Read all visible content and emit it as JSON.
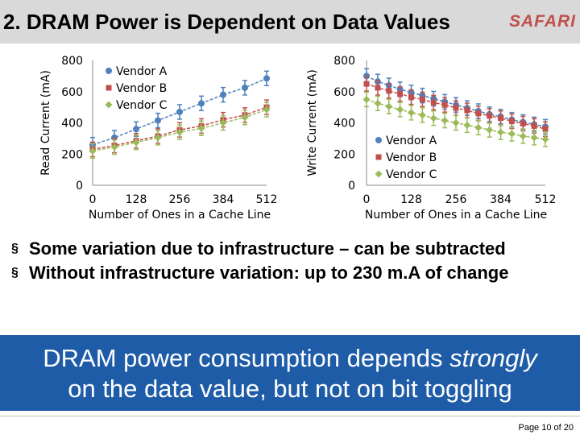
{
  "slide": {
    "title": "2. DRAM Power is Dependent on Data Values",
    "logo": "SAFARI",
    "bullets": [
      "Some variation due to infrastructure – can be subtracted",
      "Without infrastructure variation: up to 230 m.A of change"
    ],
    "bullet_mark": "§",
    "banner_line1_pre": "DRAM power consumption depends ",
    "banner_line1_em": "strongly",
    "banner_line2": "on the data value, but not on bit toggling",
    "footer": "Page 10 of 20"
  },
  "chart_data": [
    {
      "type": "line",
      "ylabel": "Read Current (mA)",
      "xlabel": "Number of Ones in a Cache Line",
      "xlim": [
        0,
        512
      ],
      "ylim": [
        0,
        800
      ],
      "x_ticks": [
        "0",
        "128",
        "256",
        "384",
        "512"
      ],
      "y_ticks": [
        "0",
        "200",
        "400",
        "600",
        "800"
      ],
      "legend_position": "top-left",
      "x": [
        0,
        32,
        64,
        96,
        128,
        160,
        192,
        224,
        256,
        288,
        320,
        352,
        384,
        416,
        448,
        480,
        512
      ],
      "series": [
        {
          "name": "Vendor A",
          "color": "#4f81bd",
          "marker": "circle",
          "values": [
            260,
            null,
            305,
            null,
            360,
            null,
            415,
            null,
            470,
            null,
            525,
            null,
            580,
            null,
            625,
            null,
            685
          ]
        },
        {
          "name": "Vendor B",
          "color": "#c0504d",
          "marker": "square",
          "values": [
            230,
            null,
            255,
            null,
            285,
            null,
            315,
            null,
            355,
            null,
            380,
            null,
            420,
            null,
            450,
            null,
            500
          ]
        },
        {
          "name": "Vendor C",
          "color": "#9bbb59",
          "marker": "diamond",
          "values": [
            220,
            null,
            245,
            null,
            275,
            null,
            305,
            null,
            340,
            null,
            365,
            null,
            400,
            null,
            435,
            null,
            485
          ]
        }
      ]
    },
    {
      "type": "line",
      "ylabel": "Write Current (mA)",
      "xlabel": "Number of Ones in a Cache Line",
      "xlim": [
        0,
        512
      ],
      "ylim": [
        0,
        800
      ],
      "x_ticks": [
        "0",
        "128",
        "256",
        "384",
        "512"
      ],
      "y_ticks": [
        "0",
        "200",
        "400",
        "600",
        "800"
      ],
      "legend_position": "bottom-left",
      "x": [
        0,
        32,
        64,
        96,
        128,
        160,
        192,
        224,
        256,
        288,
        320,
        352,
        384,
        416,
        448,
        480,
        512
      ],
      "series": [
        {
          "name": "Vendor A",
          "color": "#4f81bd",
          "marker": "circle",
          "values": [
            700,
            665,
            640,
            615,
            595,
            575,
            555,
            535,
            515,
            495,
            475,
            455,
            440,
            420,
            405,
            390,
            375
          ]
        },
        {
          "name": "Vendor B",
          "color": "#c0504d",
          "marker": "square",
          "values": [
            650,
            625,
            605,
            585,
            565,
            550,
            530,
            515,
            495,
            480,
            460,
            445,
            430,
            410,
            395,
            380,
            360
          ]
        },
        {
          "name": "Vendor C",
          "color": "#9bbb59",
          "marker": "diamond",
          "values": [
            550,
            525,
            505,
            485,
            465,
            450,
            430,
            415,
            400,
            385,
            370,
            355,
            340,
            330,
            315,
            305,
            295
          ]
        }
      ]
    }
  ]
}
